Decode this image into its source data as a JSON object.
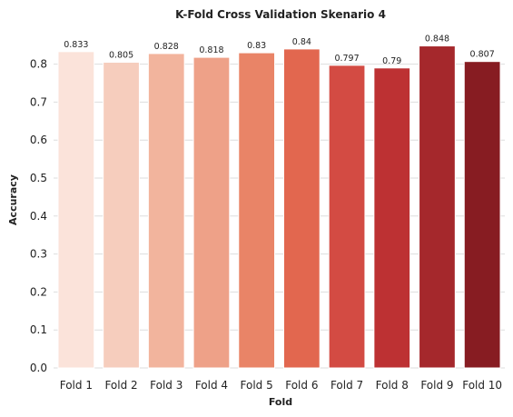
{
  "chart_data": {
    "type": "bar",
    "title": "K-Fold Cross Validation Skenario 4",
    "xlabel": "Fold",
    "ylabel": "Accuracy",
    "categories": [
      "Fold 1",
      "Fold 2",
      "Fold 3",
      "Fold 4",
      "Fold 5",
      "Fold 6",
      "Fold 7",
      "Fold 8",
      "Fold 9",
      "Fold 10"
    ],
    "values": [
      0.833,
      0.805,
      0.828,
      0.818,
      0.83,
      0.84,
      0.797,
      0.79,
      0.848,
      0.807
    ],
    "data_labels": [
      "0.833",
      "0.805",
      "0.828",
      "0.818",
      "0.83",
      "0.84",
      "0.797",
      "0.79",
      "0.848",
      "0.807"
    ],
    "yticks": [
      "0.0",
      "0.1",
      "0.2",
      "0.3",
      "0.4",
      "0.5",
      "0.6",
      "0.7",
      "0.8"
    ],
    "ylim": [
      0,
      0.89
    ],
    "grid": "horizontal",
    "colors": [
      "#fbe3da",
      "#f6cdbd",
      "#f2b49d",
      "#eea188",
      "#e98467",
      "#e2674f",
      "#d34b43",
      "#bd3133",
      "#a5282c",
      "#871c22"
    ]
  }
}
